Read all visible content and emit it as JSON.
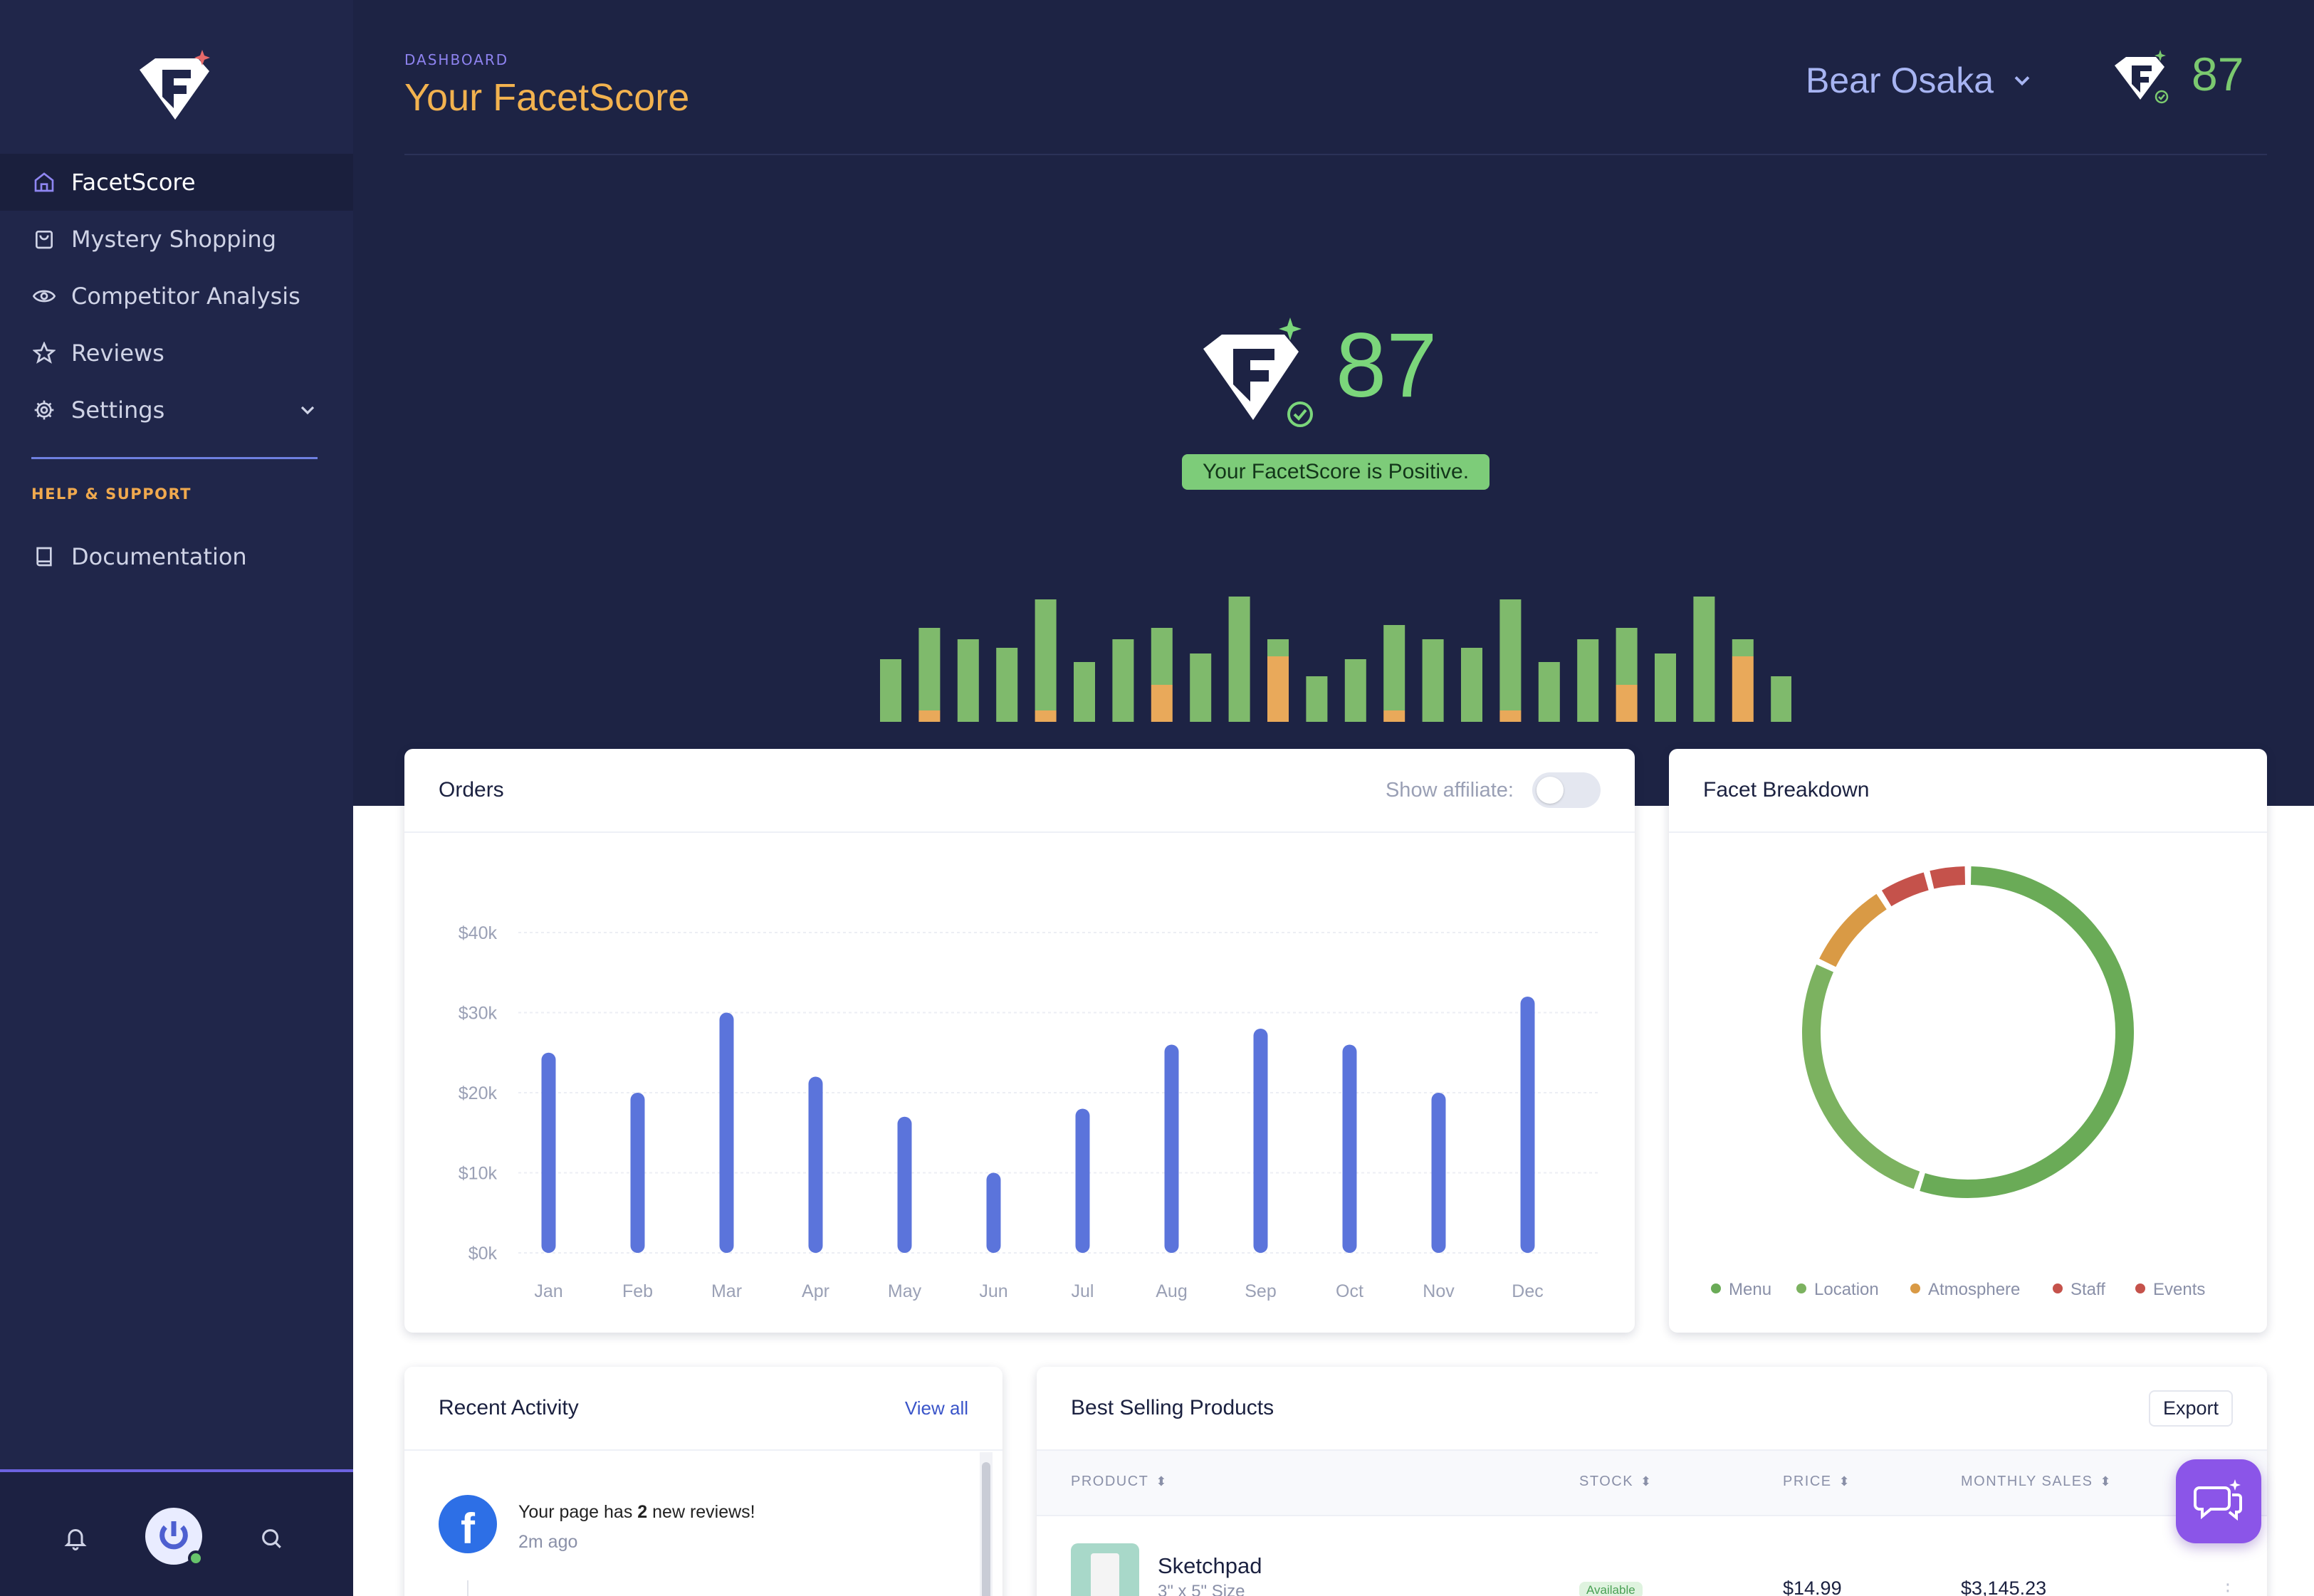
{
  "sidebar": {
    "items": [
      {
        "label": "FacetScore",
        "icon": "home-icon",
        "active": true
      },
      {
        "label": "Mystery Shopping",
        "icon": "shopping-bag-icon"
      },
      {
        "label": "Competitor Analysis",
        "icon": "eye-icon"
      },
      {
        "label": "Reviews",
        "icon": "star-icon"
      },
      {
        "label": "Settings",
        "icon": "gear-icon"
      }
    ],
    "help_label": "HELP & SUPPORT",
    "documentation": "Documentation"
  },
  "header": {
    "breadcrumb": "DASHBOARD",
    "title": "Your FacetScore",
    "user_name": "Bear Osaka",
    "score": "87"
  },
  "hero": {
    "score": "87",
    "status": "Your FacetScore is Positive."
  },
  "mini_bars": {
    "colors": {
      "positive": "#7fba6c",
      "neutral": "#e9a95a"
    },
    "values": [
      {
        "green": 44,
        "orange": 0
      },
      {
        "green": 58,
        "orange": 8
      },
      {
        "green": 58,
        "orange": 0
      },
      {
        "green": 52,
        "orange": 0
      },
      {
        "green": 78,
        "orange": 8
      },
      {
        "green": 42,
        "orange": 0
      },
      {
        "green": 58,
        "orange": 0
      },
      {
        "green": 40,
        "orange": 26
      },
      {
        "green": 48,
        "orange": 0
      },
      {
        "green": 88,
        "orange": 0
      },
      {
        "green": 12,
        "orange": 46
      },
      {
        "green": 32,
        "orange": 0
      },
      {
        "green": 44,
        "orange": 0
      },
      {
        "green": 60,
        "orange": 8
      },
      {
        "green": 58,
        "orange": 0
      },
      {
        "green": 52,
        "orange": 0
      },
      {
        "green": 78,
        "orange": 8
      },
      {
        "green": 42,
        "orange": 0
      },
      {
        "green": 58,
        "orange": 0
      },
      {
        "green": 40,
        "orange": 26
      },
      {
        "green": 48,
        "orange": 0
      },
      {
        "green": 88,
        "orange": 0
      },
      {
        "green": 12,
        "orange": 46
      },
      {
        "green": 32,
        "orange": 0
      }
    ]
  },
  "orders": {
    "title": "Orders",
    "affiliate_label": "Show affiliate:",
    "affiliate_on": false
  },
  "breakdown": {
    "title": "Facet Breakdown"
  },
  "activity": {
    "title": "Recent Activity",
    "view_all": "View all",
    "items": [
      {
        "text_before": "Your page has ",
        "count": "2",
        "text_after": " new reviews!",
        "time": "2m ago"
      }
    ]
  },
  "products": {
    "title": "Best Selling Products",
    "export": "Export",
    "columns": [
      "PRODUCT",
      "STOCK",
      "PRICE",
      "MONTHLY SALES"
    ],
    "rows": [
      {
        "name": "Sketchpad",
        "size": "3\" x 5\" Size",
        "stock": "Available",
        "price": "$14.99",
        "sales": "$3,145.23"
      }
    ]
  },
  "chart_data": [
    {
      "type": "bar",
      "categories": [
        "Jan",
        "Feb",
        "Mar",
        "Apr",
        "May",
        "Jun",
        "Jul",
        "Aug",
        "Sep",
        "Oct",
        "Nov",
        "Dec"
      ],
      "values": [
        25000,
        20000,
        30000,
        22000,
        17000,
        10000,
        18000,
        26000,
        28000,
        26000,
        20000,
        32000
      ],
      "ylim": [
        0,
        40000
      ],
      "yticks": [
        "$0k",
        "$10k",
        "$20k",
        "$30k",
        "$40k"
      ],
      "color": "#5b74db",
      "grid": true
    },
    {
      "type": "pie",
      "hole": true,
      "categories": [
        "Menu",
        "Location",
        "Atmosphere",
        "Staff",
        "Events"
      ],
      "values": [
        55,
        27,
        9,
        5,
        4
      ],
      "colors": [
        "#6aab57",
        "#7cb260",
        "#d99a45",
        "#c5524b",
        "#c5524b"
      ],
      "legend": "bottom"
    }
  ]
}
